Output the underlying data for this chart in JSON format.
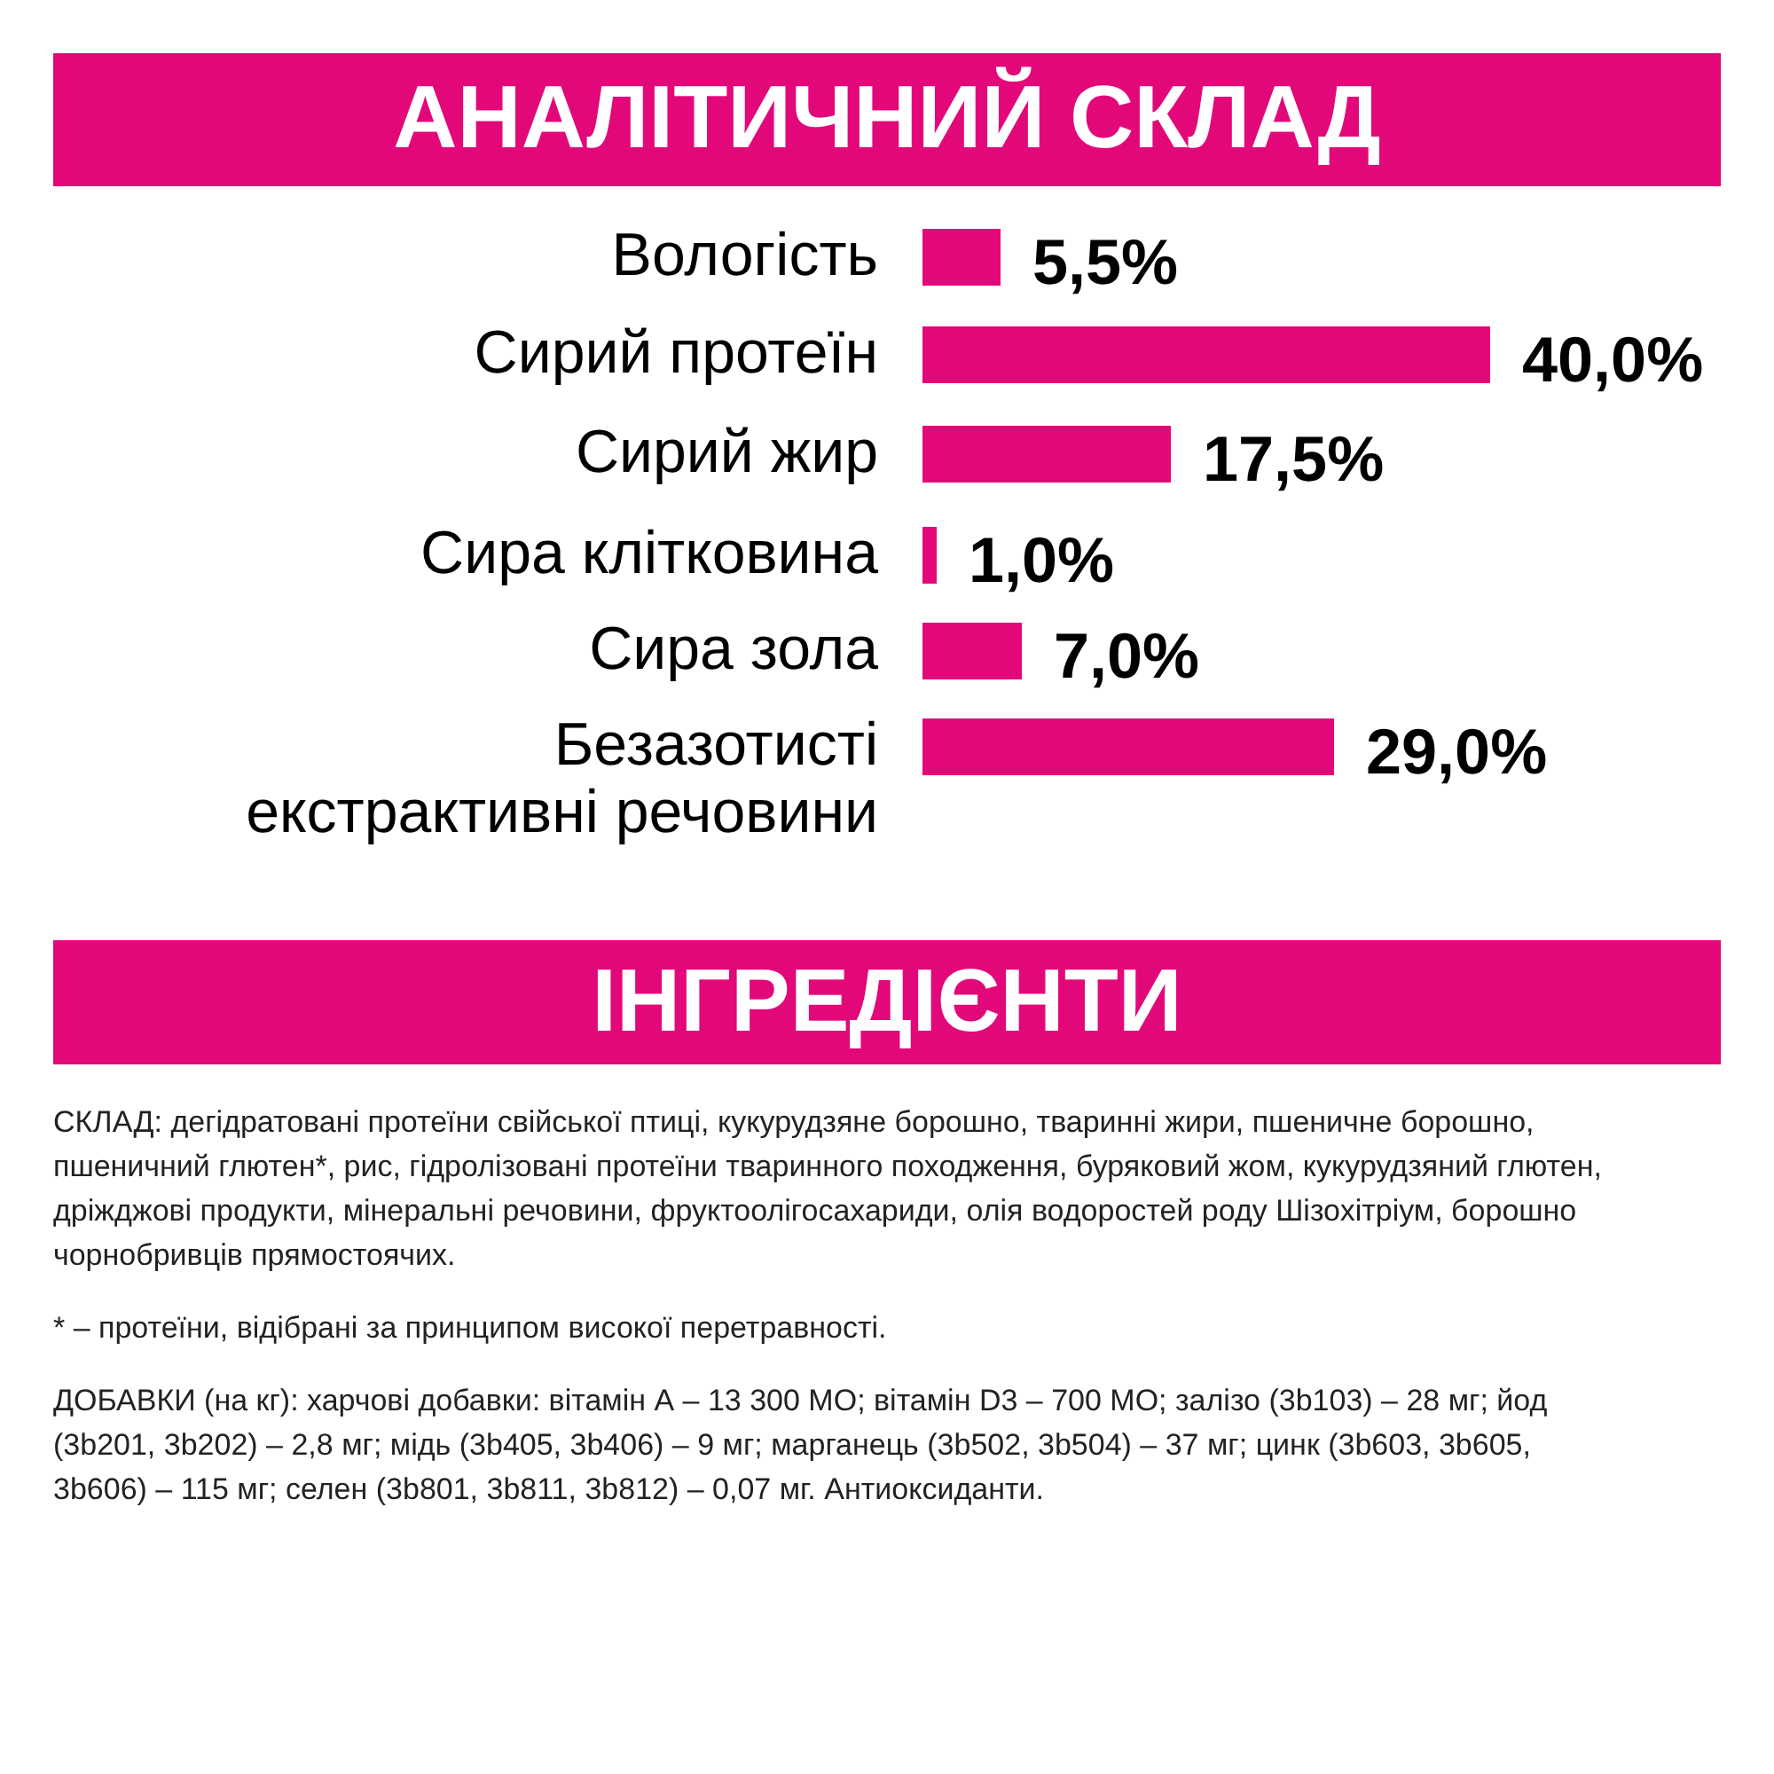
{
  "chart_data": {
    "type": "bar",
    "orientation": "horizontal",
    "title": "АНАЛІТИЧНИЙ СКЛАД",
    "categories": [
      "Вологість",
      "Сирий протеїн",
      "Сирий жир",
      "Сира клітковина",
      "Сира зола",
      "Безазотисті екстрактивні речовини"
    ],
    "values": [
      5.5,
      40.0,
      17.5,
      1.0,
      7.0,
      29.0
    ],
    "value_labels": [
      "5,5%",
      "40,0%",
      "17,5%",
      "1,0%",
      "7,0%",
      "29,0%"
    ],
    "color": "#e2087a",
    "annotations": [
      "ІНГРЕДІЄНТИ",
      "СКЛАД: дегідратовані протеїни свійської птиці, кукурудзяне борошно, тваринні жири, пшеничне борошно, пшеничний глютен*, рис, гідролізовані протеїни тваринного походження, буряковий жом, кукурудзяний глютен, дріжджові продукти, мінеральні речовини, фруктоолігосахариди, олія водоростей роду Шізохітріум, борошно чорнобривців прямостоячих.",
      "* – протеїни, відібрані за принципом високої перетравності.",
      "ДОБАВКИ (на кг): харчові добавки: вітамін А – 13 300 МО; вітамін D3 – 700 МО; залізо (3b103) – 28 мг; йод (3b201, 3b202) – 2,8 мг; мідь (3b405, 3b406) – 9 мг; марганець (3b502, 3b504) – 37 мг; цинк (3b603, 3b605, 3b606) – 115 мг; селен (3b801, 3b811, 3b812) – 0,07 мг. Антиоксиданти."
    ]
  }
}
